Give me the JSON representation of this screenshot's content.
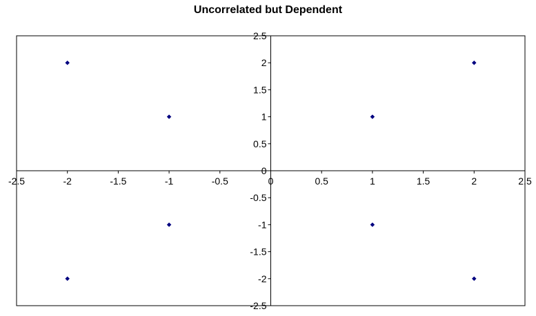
{
  "chart_data": {
    "type": "scatter",
    "title": "Uncorrelated but Dependent",
    "xlabel": "",
    "ylabel": "",
    "xlim": [
      -2.5,
      2.5
    ],
    "ylim": [
      -2.5,
      2.5
    ],
    "x_ticks": [
      -2.5,
      -2,
      -1.5,
      -1,
      -0.5,
      0,
      0.5,
      1,
      1.5,
      2,
      2.5
    ],
    "y_ticks": [
      -2.5,
      -2,
      -1.5,
      -1,
      -0.5,
      0,
      0.5,
      1,
      1.5,
      2,
      2.5
    ],
    "x_tick_labels": [
      "-2.5",
      "-2",
      "-1.5",
      "-1",
      "-0.5",
      "0",
      "0.5",
      "1",
      "1.5",
      "2",
      "2.5"
    ],
    "y_tick_labels": [
      "-2.5",
      "-2",
      "-1.5",
      "-1",
      "-0.5",
      "0",
      "0.5",
      "1",
      "1.5",
      "2",
      "2.5"
    ],
    "series": [
      {
        "points": [
          {
            "x": -2,
            "y": 2
          },
          {
            "x": -1,
            "y": 1
          },
          {
            "x": 1,
            "y": 1
          },
          {
            "x": 2,
            "y": 2
          },
          {
            "x": -1,
            "y": -1
          },
          {
            "x": 1,
            "y": -1
          },
          {
            "x": -2,
            "y": -2
          },
          {
            "x": 2,
            "y": -2
          }
        ],
        "color": "#000080"
      }
    ],
    "grid": false,
    "legend": "none",
    "axis_position": "origin"
  }
}
